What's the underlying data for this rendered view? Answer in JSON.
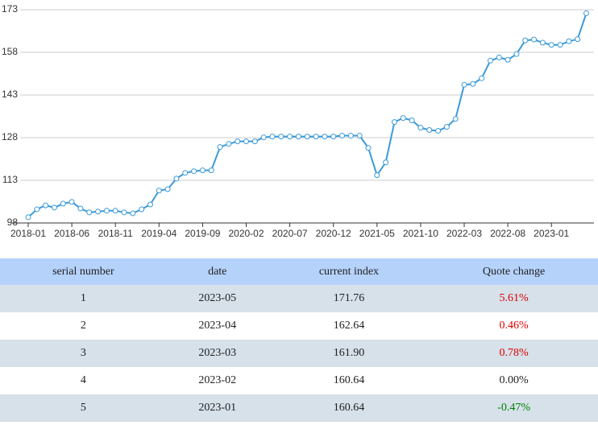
{
  "chart_data": {
    "type": "line",
    "color": "#3b9ad9",
    "grid": true,
    "categories": [
      "2018-01",
      null,
      null,
      null,
      null,
      "2018-06",
      null,
      null,
      null,
      null,
      "2018-11",
      null,
      null,
      null,
      null,
      "2019-04",
      null,
      null,
      null,
      null,
      "2019-09",
      null,
      null,
      null,
      null,
      "2020-02",
      null,
      null,
      null,
      null,
      "2020-07",
      null,
      null,
      null,
      null,
      "2020-12",
      null,
      null,
      null,
      null,
      "2021-05",
      null,
      null,
      null,
      null,
      "2021-10",
      null,
      null,
      null,
      null,
      "2022-03",
      null,
      null,
      null,
      null,
      "2022-08",
      null,
      null,
      null,
      null,
      "2023-01",
      null,
      null,
      null,
      null
    ],
    "values": [
      100,
      102.8,
      104.2,
      103.4,
      104.8,
      105.4,
      103.1,
      101.7,
      102,
      102.3,
      102.3,
      101.7,
      101.4,
      102.8,
      104.5,
      109.4,
      109.9,
      113.6,
      115.6,
      116.2,
      116.5,
      116.5,
      124.7,
      125.8,
      126.7,
      126.7,
      126.7,
      128.1,
      128.4,
      128.4,
      128.4,
      128.4,
      128.4,
      128.4,
      128.4,
      128.4,
      128.7,
      128.7,
      128.7,
      124.4,
      114.8,
      119.3,
      133.5,
      134.9,
      134.1,
      131.5,
      130.7,
      130.4,
      131.8,
      134.6,
      146.6,
      146.9,
      148.9,
      155.1,
      156.2,
      155.4,
      157.4,
      162.2,
      162.5,
      161.4,
      160.64,
      160.64,
      161.9,
      162.64,
      171.76
    ],
    "ylim": [
      98,
      175
    ],
    "yticks": [
      98,
      113,
      128,
      143,
      158,
      173
    ]
  },
  "table": {
    "headers": [
      "serial number",
      "date",
      "current index",
      "Quote change"
    ],
    "rows": [
      [
        "1",
        "2023-05",
        "171.76",
        "5.61%"
      ],
      [
        "2",
        "2023-04",
        "162.64",
        "0.46%"
      ],
      [
        "3",
        "2023-03",
        "161.90",
        "0.78%"
      ],
      [
        "4",
        "2023-02",
        "160.64",
        "0.00%"
      ],
      [
        "5",
        "2023-01",
        "160.64",
        "-0.47%"
      ]
    ]
  }
}
